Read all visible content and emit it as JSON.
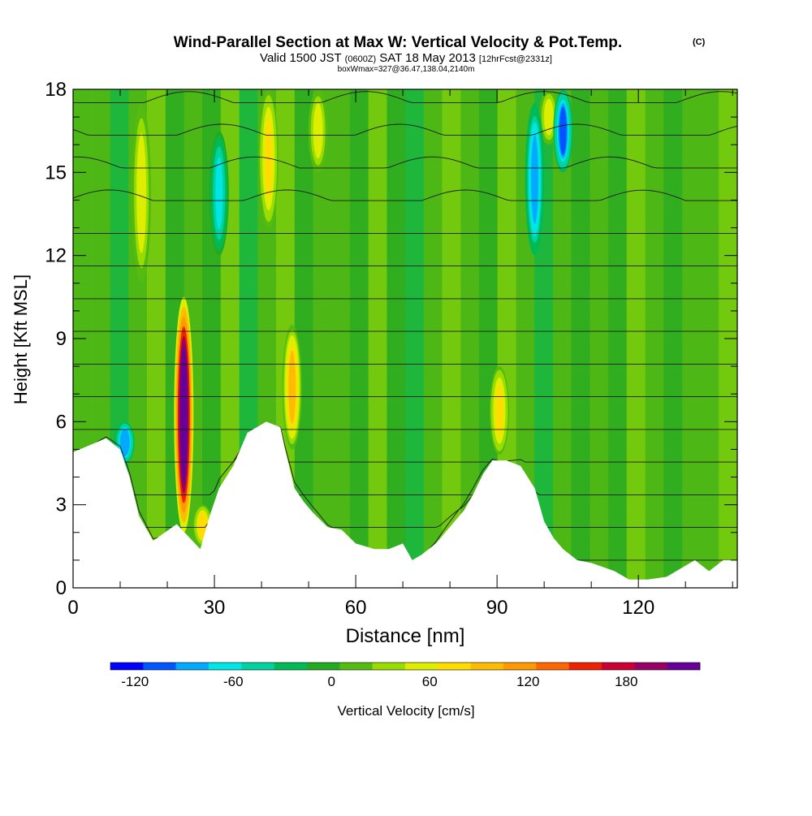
{
  "chart_data": {
    "type": "heatmap",
    "title": "Wind-Parallel Section at Max W: Vertical Velocity & Pot.Temp.",
    "title_mark": "(C)",
    "subtitle": {
      "valid": "Valid 1500 JST",
      "zulu": "(0600Z)",
      "date": "SAT 18 May 2013",
      "forecast": "[12hrFcst@2331z]"
    },
    "box_note": "boxWmax=327@36.47,138.04,2140m",
    "xlabel": "Distance [nm]",
    "ylabel": "Height [Kft MSL]",
    "xlim": [
      0,
      141
    ],
    "ylim": [
      0,
      18
    ],
    "x_ticks": [
      0,
      30,
      60,
      90,
      120
    ],
    "y_ticks": [
      0,
      3,
      6,
      9,
      12,
      15,
      18
    ],
    "x_minor_step": 10,
    "y_minor_step": 1,
    "terrain": {
      "x": [
        0,
        7,
        10,
        12,
        14,
        17,
        22,
        27,
        29,
        31,
        34,
        37,
        41,
        44,
        45,
        47,
        49,
        51,
        54,
        57,
        60,
        64,
        67,
        70,
        72,
        74,
        77,
        80,
        83,
        85,
        87,
        89,
        92,
        95,
        98,
        100,
        102,
        104,
        107,
        110,
        115,
        118,
        122,
        126,
        129,
        132,
        135,
        138,
        141
      ],
      "height_kft": [
        4.9,
        5.4,
        5.0,
        4.0,
        2.6,
        1.7,
        2.3,
        1.4,
        2.6,
        3.6,
        4.4,
        5.6,
        6.0,
        5.8,
        5.0,
        3.6,
        3.1,
        2.7,
        2.2,
        2.1,
        1.6,
        1.4,
        1.4,
        1.6,
        1.0,
        1.2,
        1.6,
        2.2,
        2.8,
        3.4,
        4.1,
        4.6,
        4.6,
        4.4,
        3.6,
        2.4,
        1.8,
        1.4,
        1.0,
        0.9,
        0.6,
        0.3,
        0.3,
        0.4,
        0.7,
        1.0,
        0.6,
        1.0,
        1.0
      ]
    },
    "velocity_cores": [
      {
        "x": 23.5,
        "ymin": 2.0,
        "ymax": 10.5,
        "peak_cms": 220
      },
      {
        "x": 46.5,
        "ymin": 5.0,
        "ymax": 9.5,
        "peak_cms": 90
      },
      {
        "x": 90.5,
        "ymin": 4.8,
        "ymax": 8.0,
        "peak_cms": 75
      },
      {
        "x": 14.5,
        "ymin": 11.0,
        "ymax": 17.5,
        "peak_cms": 60
      },
      {
        "x": 41.5,
        "ymin": 13.0,
        "ymax": 18.0,
        "peak_cms": 65
      },
      {
        "x": 52.0,
        "ymin": 15.0,
        "ymax": 18.0,
        "peak_cms": 55
      },
      {
        "x": 101.0,
        "ymin": 16.0,
        "ymax": 18.0,
        "peak_cms": 55
      },
      {
        "x": 27.5,
        "ymin": 1.5,
        "ymax": 3.0,
        "peak_cms": 80
      },
      {
        "x": 11.0,
        "ymin": 4.5,
        "ymax": 6.0,
        "peak_cms": -90
      },
      {
        "x": 31.0,
        "ymin": 12.0,
        "ymax": 16.5,
        "peak_cms": -60
      },
      {
        "x": 98.0,
        "ymin": 12.0,
        "ymax": 17.5,
        "peak_cms": -80
      },
      {
        "x": 104.0,
        "ymin": 15.0,
        "ymax": 18.0,
        "peak_cms": -100
      }
    ],
    "theta_contour_levels_K": [
      296,
      300,
      304,
      308,
      312,
      316,
      320,
      324,
      328,
      332,
      336,
      340,
      344,
      348,
      352
    ],
    "colorbar": {
      "label": "Vertical Velocity [cm/s]",
      "colors": [
        "#0000ff",
        "#0055ff",
        "#00aaff",
        "#00e6e6",
        "#00d2a0",
        "#00bb55",
        "#22aa22",
        "#55bb11",
        "#99dd00",
        "#ddee00",
        "#ffdd00",
        "#ffbb00",
        "#ff9900",
        "#ff6600",
        "#ee2200",
        "#cc0033",
        "#990066",
        "#660099"
      ],
      "ticks": [
        -120,
        -60,
        0,
        60,
        120,
        180
      ],
      "range": [
        -135,
        225
      ]
    }
  }
}
